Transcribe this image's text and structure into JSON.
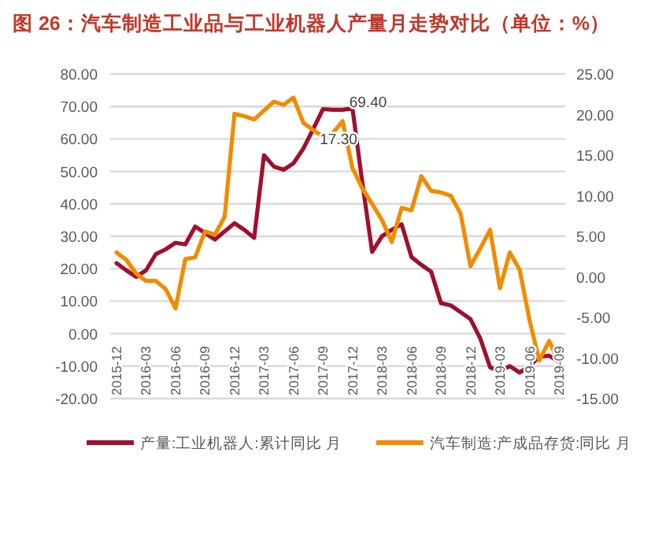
{
  "chart_data": {
    "type": "line",
    "title": "图 26：汽车制造工业品与工业机器人产量月走势对比（单位：%）",
    "categories": [
      "2015-12",
      null,
      null,
      "2016-03",
      null,
      null,
      "2016-06",
      null,
      null,
      "2016-09",
      null,
      null,
      "2016-12",
      null,
      null,
      "2017-03",
      null,
      null,
      "2017-06",
      null,
      null,
      "2017-09",
      null,
      null,
      "2017-12",
      null,
      null,
      "2018-03",
      null,
      null,
      "2018-06",
      null,
      null,
      "2018-09",
      null,
      null,
      "2018-12",
      null,
      null,
      "2019-03",
      null,
      null,
      "2019-06",
      null,
      null,
      "2019-09"
    ],
    "series": [
      {
        "name": "产量:工业机器人:累计同比 月",
        "color": "#a0102e",
        "values": [
          21.7,
          19.5,
          17.5,
          19.5,
          24.5,
          26,
          28,
          27.5,
          33,
          31,
          29,
          31.5,
          34,
          32,
          29.5,
          55,
          51.5,
          50.5,
          52.5,
          57,
          63,
          69.2,
          69,
          69,
          69.4,
          46.6,
          25.2,
          30,
          32,
          33.7,
          23.6,
          21.2,
          19.1,
          9.4,
          8.7,
          6.6,
          4.5,
          -1.5,
          -10.4,
          -11.5,
          -10,
          -12,
          -10,
          -7.1,
          -6.8,
          -8.7
        ],
        "value_labels": [
          null,
          null,
          null,
          null,
          null,
          null,
          null,
          null,
          null,
          null,
          null,
          null,
          null,
          null,
          null,
          null,
          null,
          null,
          null,
          null,
          null,
          null,
          null,
          null,
          "69.40",
          null,
          null,
          null,
          null,
          null,
          null,
          null,
          null,
          null,
          null,
          null,
          null,
          null,
          null,
          null,
          null,
          null,
          null,
          null,
          null,
          null
        ]
      },
      {
        "name": "汽车制造:产成品存货:同比 月",
        "color": "#f08c00",
        "axis": "y2",
        "values": [
          3.0,
          2.1,
          0.4,
          -0.5,
          -0.5,
          -1.5,
          -3.9,
          2.2,
          2.4,
          5.6,
          5.2,
          7.4,
          20.1,
          19.8,
          19.4,
          20.5,
          21.6,
          21.2,
          22.1,
          19.0,
          18.1,
          17.3,
          17.7,
          19.2,
          13.4,
          10.9,
          9.0,
          7.0,
          4.3,
          8.5,
          8.2,
          12.4,
          10.6,
          10.4,
          10.0,
          7.8,
          1.3,
          3.5,
          5.8,
          -1.4,
          3.0,
          0.9,
          -5.3,
          -10.3,
          -7.9,
          -10.5
        ],
        "value_labels": [
          null,
          null,
          null,
          null,
          null,
          null,
          null,
          null,
          null,
          null,
          null,
          null,
          null,
          null,
          null,
          null,
          null,
          null,
          null,
          null,
          null,
          "17.30",
          null,
          null,
          null,
          null,
          null,
          null,
          null,
          null,
          null,
          null,
          null,
          null,
          null,
          null,
          null,
          null,
          null,
          null,
          null,
          null,
          null,
          null,
          null,
          null
        ]
      }
    ],
    "ylim": [
      -20,
      80
    ],
    "yticks": [
      {
        "value": -20,
        "label": "-20.00"
      },
      {
        "value": -10,
        "label": "-10.00"
      },
      {
        "value": 0,
        "label": "0.00"
      },
      {
        "value": 10,
        "label": "10.00"
      },
      {
        "value": 20,
        "label": "20.00"
      },
      {
        "value": 30,
        "label": "30.00"
      },
      {
        "value": 40,
        "label": "40.00"
      },
      {
        "value": 50,
        "label": "50.00"
      },
      {
        "value": 60,
        "label": "60.00"
      },
      {
        "value": 70,
        "label": "70.00"
      },
      {
        "value": 80,
        "label": "80.00"
      }
    ],
    "y2lim": [
      -15,
      25
    ],
    "y2ticks": [
      {
        "value": -15,
        "label": "-15.00"
      },
      {
        "value": -10,
        "label": "-10.00"
      },
      {
        "value": -5,
        "label": "-5.00"
      },
      {
        "value": 0,
        "label": "0.00"
      },
      {
        "value": 5,
        "label": "5.00"
      },
      {
        "value": 10,
        "label": "10.00"
      },
      {
        "value": 15,
        "label": "15.00"
      },
      {
        "value": 20,
        "label": "20.00"
      },
      {
        "value": 25,
        "label": "25.00"
      }
    ],
    "grid": "y",
    "legend": "bottom"
  }
}
